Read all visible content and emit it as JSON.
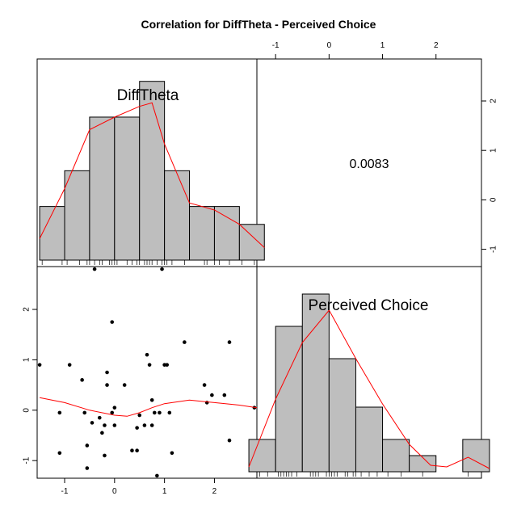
{
  "chart_data": {
    "type": "pairs",
    "title": "Correlation  for DiffTheta - Perceived Choice",
    "variables": [
      "DiffTheta",
      "Perceived Choice"
    ],
    "correlation_text": "0.0083",
    "axes": {
      "diff_ticks": [
        -1,
        0,
        1,
        2
      ],
      "choice_ticks": [
        -1,
        0,
        1,
        2
      ],
      "diff_range": [
        -1.55,
        2.85
      ],
      "choice_range": [
        -1.35,
        2.85
      ]
    },
    "histogram_diff": {
      "breaks": [
        -1.5,
        -1.0,
        -0.5,
        0.0,
        0.5,
        1.0,
        1.5,
        2.0,
        2.5,
        3.0
      ],
      "counts": [
        3,
        5,
        8,
        8,
        10,
        5,
        3,
        3,
        2
      ],
      "count_max": 10.8,
      "density_curve_x": [
        -1.5,
        -1.0,
        -0.5,
        0.0,
        0.5,
        0.75,
        1.0,
        1.5,
        2.0,
        2.5,
        3.0
      ],
      "density_curve_y": [
        1.2,
        4.0,
        7.3,
        8.0,
        8.6,
        8.8,
        6.5,
        3.2,
        2.8,
        2.0,
        0.7
      ]
    },
    "histogram_choice": {
      "breaks": [
        -1.5,
        -1.0,
        -0.5,
        0.0,
        0.5,
        1.0,
        1.5,
        2.0,
        2.5,
        3.0
      ],
      "counts": [
        2,
        9,
        11,
        7,
        4,
        2,
        1,
        0,
        2
      ],
      "count_max": 12.2,
      "density_curve_x": [
        -1.5,
        -1.0,
        -0.5,
        0.0,
        0.5,
        1.0,
        1.5,
        1.9,
        2.2,
        2.6,
        3.0
      ],
      "density_curve_y": [
        0.3,
        4.5,
        8.0,
        10.0,
        7.0,
        4.2,
        1.7,
        0.4,
        0.3,
        0.9,
        0.2
      ]
    },
    "rug_diff": [
      -1.45,
      -1.05,
      -0.95,
      -0.7,
      -0.55,
      -0.5,
      -0.4,
      -0.3,
      -0.25,
      -0.1,
      -0.05,
      0.0,
      0.05,
      0.25,
      0.35,
      0.45,
      0.5,
      0.6,
      0.65,
      0.7,
      0.75,
      0.85,
      0.95,
      1.0,
      1.05,
      1.15,
      1.4,
      1.8,
      1.85,
      2.0,
      2.1,
      2.3,
      2.55,
      2.8
    ],
    "rug_choice": [
      -1.3,
      -1.15,
      -0.95,
      -0.9,
      -0.85,
      -0.8,
      -0.75,
      -0.7,
      -0.6,
      -0.35,
      -0.3,
      -0.25,
      -0.2,
      -0.05,
      0.0,
      0.05,
      0.1,
      0.15,
      0.3,
      0.35,
      0.45,
      0.5,
      0.6,
      0.75,
      0.9,
      1.1,
      1.35,
      1.75,
      2.6
    ],
    "scatter": [
      [
        -1.5,
        0.9
      ],
      [
        -1.1,
        -0.05
      ],
      [
        -1.1,
        -0.85
      ],
      [
        -0.9,
        0.9
      ],
      [
        -0.65,
        0.6
      ],
      [
        -0.6,
        -0.05
      ],
      [
        -0.55,
        -0.7
      ],
      [
        -0.55,
        -1.15
      ],
      [
        -0.45,
        -0.25
      ],
      [
        -0.4,
        2.8
      ],
      [
        -0.3,
        -0.15
      ],
      [
        -0.25,
        -0.45
      ],
      [
        -0.2,
        -0.9
      ],
      [
        -0.2,
        -0.3
      ],
      [
        -0.15,
        0.75
      ],
      [
        -0.15,
        0.5
      ],
      [
        -0.05,
        1.75
      ],
      [
        -0.05,
        -0.05
      ],
      [
        0.0,
        -0.3
      ],
      [
        0.0,
        0.05
      ],
      [
        0.2,
        0.5
      ],
      [
        0.35,
        -0.8
      ],
      [
        0.45,
        -0.35
      ],
      [
        0.45,
        -0.8
      ],
      [
        0.5,
        -0.1
      ],
      [
        0.6,
        -0.3
      ],
      [
        0.65,
        1.1
      ],
      [
        0.7,
        0.9
      ],
      [
        0.75,
        -0.3
      ],
      [
        0.75,
        0.2
      ],
      [
        0.8,
        -0.05
      ],
      [
        0.85,
        -1.3
      ],
      [
        0.9,
        -0.05
      ],
      [
        0.95,
        2.8
      ],
      [
        1.0,
        0.9
      ],
      [
        1.05,
        0.9
      ],
      [
        1.1,
        -0.05
      ],
      [
        1.15,
        -0.85
      ],
      [
        1.4,
        1.35
      ],
      [
        1.8,
        0.5
      ],
      [
        1.85,
        0.15
      ],
      [
        1.95,
        0.3
      ],
      [
        2.2,
        0.3
      ],
      [
        2.3,
        1.35
      ],
      [
        2.3,
        -0.6
      ],
      [
        2.75,
        -0.85
      ],
      [
        2.8,
        0.05
      ]
    ],
    "lowess": [
      [
        -1.5,
        0.25
      ],
      [
        -1.0,
        0.15
      ],
      [
        -0.5,
        0.0
      ],
      [
        0.0,
        -0.1
      ],
      [
        0.25,
        -0.12
      ],
      [
        0.5,
        -0.05
      ],
      [
        0.75,
        0.05
      ],
      [
        1.0,
        0.13
      ],
      [
        1.5,
        0.2
      ],
      [
        2.0,
        0.15
      ],
      [
        2.5,
        0.1
      ],
      [
        2.85,
        0.05
      ]
    ],
    "colors": {
      "bar_fill": "#bebebe",
      "curve": "#ff0000",
      "points": "#000000",
      "frame": "#000000"
    }
  }
}
